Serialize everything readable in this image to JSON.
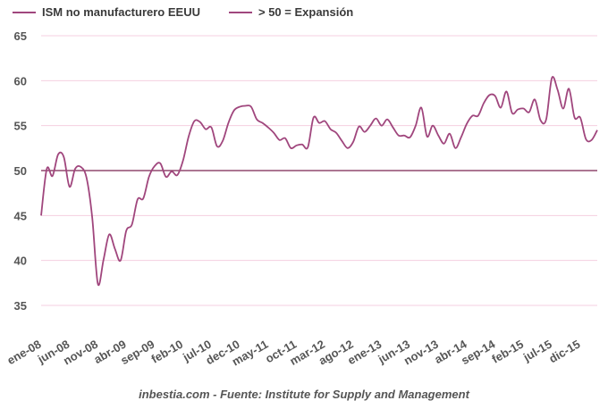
{
  "colors": {
    "series": "#a0467d",
    "threshold": "#7a2450",
    "grid": "#f4cfe0",
    "text": "#555555"
  },
  "legend": {
    "item1": "ISM no manufacturero EEUU",
    "item2": "> 50 = Expansión"
  },
  "source": "inbestia.com - Fuente: Institute for Supply and Management",
  "chart_data": {
    "type": "line",
    "title": "",
    "xlabel": "",
    "ylabel": "",
    "ylim": [
      35,
      65
    ],
    "yticks": [
      35,
      40,
      45,
      50,
      55,
      60,
      65
    ],
    "xtick_labels": [
      {
        "label": "ene-08",
        "index": 0
      },
      {
        "label": "jun-08",
        "index": 5
      },
      {
        "label": "nov-08",
        "index": 10
      },
      {
        "label": "abr-09",
        "index": 15
      },
      {
        "label": "sep-09",
        "index": 20
      },
      {
        "label": "feb-10",
        "index": 25
      },
      {
        "label": "jul-10",
        "index": 30
      },
      {
        "label": "dec-10",
        "index": 35
      },
      {
        "label": "may-11",
        "index": 40
      },
      {
        "label": "oct-11",
        "index": 45
      },
      {
        "label": "mar-12",
        "index": 50
      },
      {
        "label": "ago-12",
        "index": 55
      },
      {
        "label": "ene-13",
        "index": 60
      },
      {
        "label": "jun-13",
        "index": 65
      },
      {
        "label": "nov-13",
        "index": 70
      },
      {
        "label": "abr-14",
        "index": 75
      },
      {
        "label": "sep-14",
        "index": 80
      },
      {
        "label": "feb-15",
        "index": 85
      },
      {
        "label": "jul-15",
        "index": 90
      },
      {
        "label": "dic-15",
        "index": 95
      }
    ],
    "series": [
      {
        "name": "ISM no manufacturero EEUU",
        "values": [
          45.0,
          50.2,
          49.4,
          51.8,
          51.5,
          48.2,
          50.2,
          50.4,
          49.2,
          44.8,
          37.4,
          40.1,
          42.9,
          41.3,
          40.0,
          43.3,
          44.0,
          46.8,
          46.9,
          49.3,
          50.5,
          50.8,
          49.3,
          49.9,
          49.5,
          51.1,
          53.8,
          55.5,
          55.4,
          54.6,
          54.8,
          52.7,
          53.3,
          55.3,
          56.7,
          57.1,
          57.2,
          57.1,
          55.7,
          55.3,
          54.8,
          54.2,
          53.4,
          53.6,
          52.5,
          52.8,
          52.9,
          52.6,
          55.9,
          55.3,
          55.5,
          54.6,
          54.2,
          53.3,
          52.5,
          53.2,
          54.9,
          54.3,
          55.0,
          55.8,
          55.0,
          55.7,
          54.8,
          53.9,
          53.9,
          53.7,
          55.0,
          57.0,
          53.8,
          55.0,
          53.9,
          53.0,
          54.1,
          52.5,
          53.7,
          55.2,
          56.1,
          56.1,
          57.5,
          58.4,
          58.3,
          57.0,
          58.8,
          56.4,
          56.8,
          56.9,
          56.5,
          57.9,
          55.6,
          55.7,
          60.3,
          59.0,
          56.9,
          59.1,
          55.9,
          55.9,
          53.5,
          53.4,
          54.5
        ]
      },
      {
        "name": "> 50 = Expansión",
        "constant": 50
      }
    ]
  }
}
